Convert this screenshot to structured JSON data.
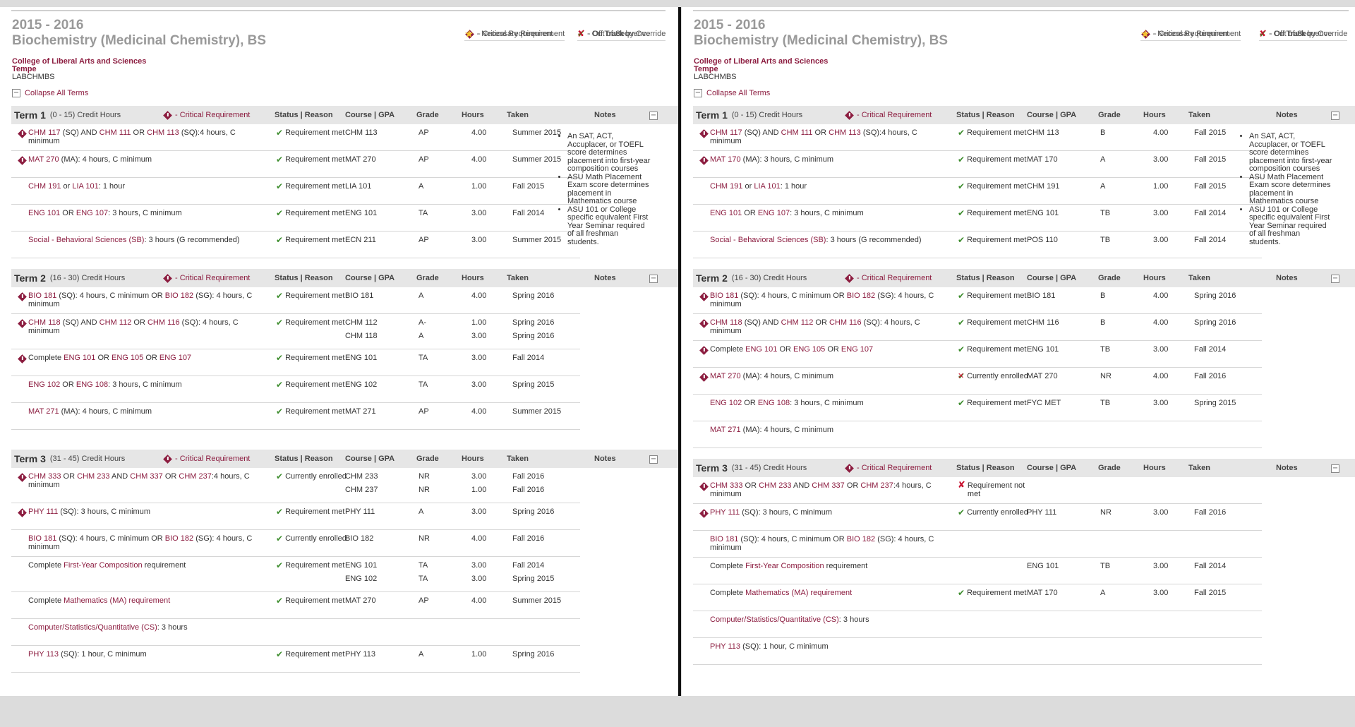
{
  "panels": [
    {
      "id": "left",
      "year": "2015 - 2016",
      "degree": "Biochemistry (Medicinal Chemistry), BS",
      "college": "College of Liberal Arts and Sciences",
      "campus": "Tempe",
      "code": "LABCHMBS",
      "collapse_label": "Collapse All Terms",
      "legend": {
        "critical": "- Critical Requirement",
        "necessary": "- Necessary Requirement",
        "on_track": "- On Track",
        "off_track": "- Off Track",
        "override": "- On Track by Override",
        "out_seq": "- Out of Sequence"
      },
      "headers": {
        "status": "Status | Reason",
        "course": "Course | GPA",
        "grade": "Grade",
        "hours": "Hours",
        "taken": "Taken",
        "notes": "Notes",
        "critical": "- Critical Requirement"
      },
      "terms": [
        {
          "name": "Term 1",
          "hours": "(0 - 15) Credit Hours",
          "notes": [
            "An SAT, ACT, Accuplacer, or TOEFL score determines placement into first-year composition courses",
            "ASU Math Placement Exam score determines placement in Mathematics course",
            "ASU 101 or College specific equivalent First Year Seminar required of all freshman students."
          ],
          "rows": [
            {
              "crit": true,
              "req": "CHM 117 (SQ) AND CHM 111 OR CHM 113 (SQ):4 hours, C minimum",
              "status": "Requirement met",
              "sicon": "on_track",
              "lines": [
                {
                  "course": "CHM 113",
                  "grade": "AP",
                  "hours": "4.00",
                  "taken": "Summer 2015"
                }
              ]
            },
            {
              "crit": true,
              "req": "MAT 270 (MA): 4 hours, C minimum",
              "status": "Requirement met",
              "sicon": "on_track",
              "lines": [
                {
                  "course": "MAT 270",
                  "grade": "AP",
                  "hours": "4.00",
                  "taken": "Summer 2015"
                }
              ]
            },
            {
              "crit": false,
              "req": "CHM 191 or LIA 101: 1 hour",
              "status": "Requirement met",
              "sicon": "on_track",
              "lines": [
                {
                  "course": "LIA 101",
                  "grade": "A",
                  "hours": "1.00",
                  "taken": "Fall 2015"
                }
              ]
            },
            {
              "crit": false,
              "req": "ENG 101 OR ENG 107: 3 hours, C minimum",
              "status": "Requirement met",
              "sicon": "on_track",
              "lines": [
                {
                  "course": "ENG 101",
                  "grade": "TA",
                  "hours": "3.00",
                  "taken": "Fall 2014"
                }
              ]
            },
            {
              "crit": false,
              "req": "Social - Behavioral Sciences (SB): 3 hours (G recommended)",
              "status": "Requirement met",
              "sicon": "on_track",
              "lines": [
                {
                  "course": "ECN 211",
                  "grade": "AP",
                  "hours": "3.00",
                  "taken": "Summer 2015"
                }
              ]
            }
          ]
        },
        {
          "name": "Term 2",
          "hours": "(16 - 30) Credit Hours",
          "notes": [],
          "rows": [
            {
              "crit": true,
              "req": "BIO 181 (SQ): 4 hours, C minimum OR BIO 182 (SG): 4 hours, C minimum",
              "status": "Requirement met",
              "sicon": "on_track",
              "lines": [
                {
                  "course": "BIO 181",
                  "grade": "A",
                  "hours": "4.00",
                  "taken": "Spring 2016"
                }
              ]
            },
            {
              "crit": true,
              "req": "CHM 118 (SQ) AND CHM 112 OR CHM 116 (SQ): 4 hours, C minimum",
              "status": "Requirement met",
              "sicon": "on_track",
              "lines": [
                {
                  "course": "CHM 112",
                  "grade": "A-",
                  "hours": "1.00",
                  "taken": "Spring 2016"
                },
                {
                  "course": "CHM 118",
                  "grade": "A",
                  "hours": "3.00",
                  "taken": "Spring 2016"
                }
              ]
            },
            {
              "crit": true,
              "req": "Complete ENG 101 OR ENG 105 OR ENG 107",
              "status": "Requirement met",
              "sicon": "on_track",
              "lines": [
                {
                  "course": "ENG 101",
                  "grade": "TA",
                  "hours": "3.00",
                  "taken": "Fall 2014"
                }
              ]
            },
            {
              "crit": false,
              "req": "ENG 102 OR ENG 108: 3 hours, C minimum",
              "status": "Requirement met",
              "sicon": "on_track",
              "lines": [
                {
                  "course": "ENG 102",
                  "grade": "TA",
                  "hours": "3.00",
                  "taken": "Spring 2015"
                }
              ]
            },
            {
              "crit": false,
              "req": "MAT 271 (MA): 4 hours, C minimum",
              "status": "Requirement met",
              "sicon": "on_track",
              "lines": [
                {
                  "course": "MAT 271",
                  "grade": "AP",
                  "hours": "4.00",
                  "taken": "Summer 2015"
                }
              ]
            }
          ]
        },
        {
          "name": "Term 3",
          "hours": "(31 - 45) Credit Hours",
          "notes": [],
          "rows": [
            {
              "crit": true,
              "req": "CHM 333 OR CHM 233 AND CHM 337 OR CHM 237:4 hours, C minimum",
              "status": "Currently enrolled",
              "sicon": "on_track",
              "lines": [
                {
                  "course": "CHM 233",
                  "grade": "NR",
                  "hours": "3.00",
                  "taken": "Fall 2016"
                },
                {
                  "course": "CHM 237",
                  "grade": "NR",
                  "hours": "1.00",
                  "taken": "Fall 2016"
                }
              ]
            },
            {
              "crit": true,
              "req": "PHY 111 (SQ): 3 hours, C minimum",
              "status": "Requirement met",
              "sicon": "on_track",
              "lines": [
                {
                  "course": "PHY 111",
                  "grade": "A",
                  "hours": "3.00",
                  "taken": "Spring 2016"
                }
              ]
            },
            {
              "crit": false,
              "req": "BIO 181 (SQ): 4 hours, C minimum OR BIO 182 (SG): 4 hours, C minimum",
              "status": "Currently enrolled",
              "sicon": "on_track",
              "lines": [
                {
                  "course": "BIO 182",
                  "grade": "NR",
                  "hours": "4.00",
                  "taken": "Fall 2016"
                }
              ]
            },
            {
              "crit": false,
              "req": "Complete First-Year Composition requirement",
              "status": "Requirement met",
              "sicon": "on_track",
              "lines": [
                {
                  "course": "ENG 101",
                  "grade": "TA",
                  "hours": "3.00",
                  "taken": "Fall 2014"
                },
                {
                  "course": "ENG 102",
                  "grade": "TA",
                  "hours": "3.00",
                  "taken": "Spring 2015"
                }
              ]
            },
            {
              "crit": false,
              "req": "Complete Mathematics (MA) requirement",
              "status": "Requirement met",
              "sicon": "on_track",
              "lines": [
                {
                  "course": "MAT 270",
                  "grade": "AP",
                  "hours": "4.00",
                  "taken": "Summer 2015"
                }
              ]
            },
            {
              "crit": false,
              "req": "Computer/Statistics/Quantitative (CS): 3 hours",
              "status": "",
              "sicon": "",
              "lines": []
            },
            {
              "crit": false,
              "req": "PHY 113 (SQ): 1 hour, C minimum",
              "status": "Requirement met",
              "sicon": "on_track",
              "lines": [
                {
                  "course": "PHY 113",
                  "grade": "A",
                  "hours": "1.00",
                  "taken": "Spring 2016"
                }
              ]
            }
          ]
        }
      ]
    },
    {
      "id": "right",
      "year": "2015 - 2016",
      "degree": "Biochemistry (Medicinal Chemistry), BS",
      "college": "College of Liberal Arts and Sciences",
      "campus": "Tempe",
      "code": "LABCHMBS",
      "collapse_label": "Collapse All Terms",
      "legend": {
        "critical": "- Critical Requirement",
        "necessary": "- Necessary Requirement",
        "on_track": "- On Track",
        "off_track": "- Off Track",
        "override": "- On Track by Override",
        "out_seq": "- Out of Sequence"
      },
      "headers": {
        "status": "Status | Reason",
        "course": "Course | GPA",
        "grade": "Grade",
        "hours": "Hours",
        "taken": "Taken",
        "notes": "Notes",
        "critical": "- Critical Requirement"
      },
      "terms": [
        {
          "name": "Term 1",
          "hours": "(0 - 15) Credit Hours",
          "notes": [
            "An SAT, ACT, Accuplacer, or TOEFL score determines placement into first-year composition courses",
            "ASU Math Placement Exam score determines placement in Mathematics course",
            "ASU 101 or College specific equivalent First Year Seminar required of all freshman students."
          ],
          "rows": [
            {
              "crit": true,
              "req": "CHM 117 (SQ) AND CHM 111 OR CHM 113 (SQ):4 hours, C minimum",
              "status": "Requirement met",
              "sicon": "on_track",
              "lines": [
                {
                  "course": "CHM 113",
                  "grade": "B",
                  "hours": "4.00",
                  "taken": "Fall 2015"
                }
              ]
            },
            {
              "crit": true,
              "req": "MAT 170 (MA): 3 hours, C minimum",
              "status": "Requirement met",
              "sicon": "on_track",
              "lines": [
                {
                  "course": "MAT 170",
                  "grade": "A",
                  "hours": "3.00",
                  "taken": "Fall 2015"
                }
              ]
            },
            {
              "crit": false,
              "req": "CHM 191 or LIA 101: 1 hour",
              "status": "Requirement met",
              "sicon": "on_track",
              "lines": [
                {
                  "course": "CHM 191",
                  "grade": "A",
                  "hours": "1.00",
                  "taken": "Fall 2015"
                }
              ]
            },
            {
              "crit": false,
              "req": "ENG 101 OR ENG 107: 3 hours, C minimum",
              "status": "Requirement met",
              "sicon": "on_track",
              "lines": [
                {
                  "course": "ENG 101",
                  "grade": "TB",
                  "hours": "3.00",
                  "taken": "Fall 2014"
                }
              ]
            },
            {
              "crit": false,
              "req": "Social - Behavioral Sciences (SB): 3 hours (G recommended)",
              "status": "Requirement met",
              "sicon": "on_track",
              "lines": [
                {
                  "course": "POS 110",
                  "grade": "TB",
                  "hours": "3.00",
                  "taken": "Fall 2014"
                }
              ]
            }
          ]
        },
        {
          "name": "Term 2",
          "hours": "(16 - 30) Credit Hours",
          "notes": [],
          "rows": [
            {
              "crit": true,
              "req": "BIO 181 (SQ): 4 hours, C minimum OR BIO 182 (SG): 4 hours, C minimum",
              "status": "Requirement met",
              "sicon": "on_track",
              "lines": [
                {
                  "course": "BIO 181",
                  "grade": "B",
                  "hours": "4.00",
                  "taken": "Spring 2016"
                }
              ]
            },
            {
              "crit": true,
              "req": "CHM 118 (SQ) AND CHM 112 OR CHM 116 (SQ): 4 hours, C minimum",
              "status": "Requirement met",
              "sicon": "on_track",
              "lines": [
                {
                  "course": "CHM 116",
                  "grade": "B",
                  "hours": "4.00",
                  "taken": "Spring 2016"
                }
              ]
            },
            {
              "crit": true,
              "req": "Complete ENG 101 OR ENG 105 OR ENG 107",
              "status": "Requirement met",
              "sicon": "on_track",
              "lines": [
                {
                  "course": "ENG 101",
                  "grade": "TB",
                  "hours": "3.00",
                  "taken": "Fall 2014"
                }
              ]
            },
            {
              "crit": true,
              "req": "MAT 270 (MA): 4 hours, C minimum",
              "status": "Currently enrolled",
              "sicon": "out_seq",
              "lines": [
                {
                  "course": "MAT 270",
                  "grade": "NR",
                  "hours": "4.00",
                  "taken": "Fall 2016"
                }
              ]
            },
            {
              "crit": false,
              "req": "ENG 102 OR ENG 108: 3 hours, C minimum",
              "status": "Requirement met",
              "sicon": "on_track",
              "lines": [
                {
                  "course": "FYC MET",
                  "grade": "TB",
                  "hours": "3.00",
                  "taken": "Spring 2015"
                }
              ]
            },
            {
              "crit": false,
              "req": "MAT 271 (MA): 4 hours, C minimum",
              "status": "",
              "sicon": "",
              "lines": []
            }
          ]
        },
        {
          "name": "Term 3",
          "hours": "(31 - 45) Credit Hours",
          "notes": [],
          "rows": [
            {
              "crit": true,
              "req": "CHM 333 OR CHM 233 AND CHM 337 OR CHM 237:4 hours, C minimum",
              "status": "Requirement not met",
              "sicon": "off_track",
              "lines": []
            },
            {
              "crit": true,
              "req": "PHY 111 (SQ): 3 hours, C minimum",
              "status": "Currently enrolled",
              "sicon": "on_track",
              "lines": [
                {
                  "course": "PHY 111",
                  "grade": "NR",
                  "hours": "3.00",
                  "taken": "Fall 2016"
                }
              ]
            },
            {
              "crit": false,
              "req": "BIO 181 (SQ): 4 hours, C minimum OR BIO 182 (SG): 4 hours, C minimum",
              "status": "",
              "sicon": "",
              "lines": []
            },
            {
              "crit": false,
              "req": "Complete First-Year Composition requirement",
              "status": "",
              "sicon": "",
              "lines": [
                {
                  "course": "ENG 101",
                  "grade": "TB",
                  "hours": "3.00",
                  "taken": "Fall 2014"
                }
              ]
            },
            {
              "crit": false,
              "req": "Complete Mathematics (MA) requirement",
              "status": "Requirement met",
              "sicon": "on_track",
              "lines": [
                {
                  "course": "MAT 170",
                  "grade": "A",
                  "hours": "3.00",
                  "taken": "Fall 2015"
                }
              ]
            },
            {
              "crit": false,
              "req": "Computer/Statistics/Quantitative (CS): 3 hours",
              "status": "",
              "sicon": "",
              "lines": []
            },
            {
              "crit": false,
              "req": "PHY 113 (SQ): 1 hour, C minimum",
              "status": "",
              "sicon": "",
              "lines": []
            }
          ]
        }
      ]
    }
  ]
}
